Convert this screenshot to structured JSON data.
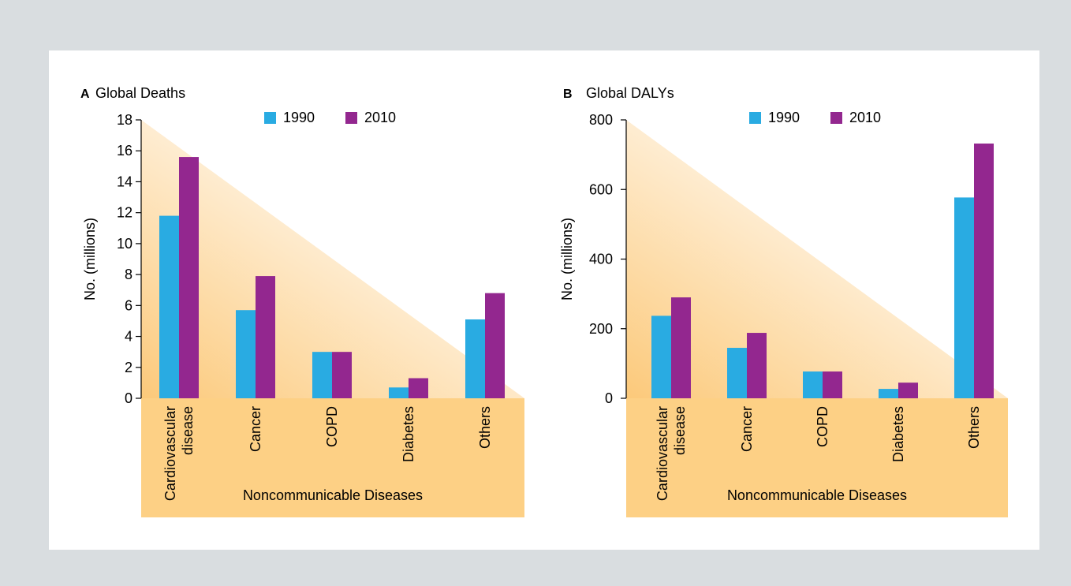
{
  "colors": {
    "series_1990": "#29abe2",
    "series_2010": "#93278f",
    "category_band": "#fdd085",
    "gradient_start": "#fcc97a",
    "page_background": "#d9dde0",
    "panel_background": "#ffffff"
  },
  "legend": {
    "label_1990": "1990",
    "label_2010": "2010"
  },
  "chart_data": [
    {
      "type": "bar",
      "panel_label": "A",
      "title": "Global Deaths",
      "ylabel": "No. (millions)",
      "xlabel": "Noncommunicable Diseases",
      "ylim": [
        0,
        18
      ],
      "yticks": [
        0,
        2,
        4,
        6,
        8,
        10,
        12,
        14,
        16,
        18
      ],
      "categories": [
        [
          "Cardiovascular",
          "disease"
        ],
        [
          "Cancer"
        ],
        [
          "COPD"
        ],
        [
          "Diabetes"
        ],
        [
          "Others"
        ]
      ],
      "series": [
        {
          "name": "1990",
          "values": [
            11.8,
            5.7,
            3.0,
            0.7,
            5.1
          ]
        },
        {
          "name": "2010",
          "values": [
            15.6,
            7.9,
            3.0,
            1.3,
            6.8
          ]
        }
      ],
      "legend_position": "top"
    },
    {
      "type": "bar",
      "panel_label": "B",
      "title": "Global DALYs",
      "ylabel": "No. (millions)",
      "xlabel": "Noncommunicable Diseases",
      "ylim": [
        0,
        800
      ],
      "yticks": [
        0,
        200,
        400,
        600,
        800
      ],
      "categories": [
        [
          "Cardiovascular",
          "disease"
        ],
        [
          "Cancer"
        ],
        [
          "COPD"
        ],
        [
          "Diabetes"
        ],
        [
          "Others"
        ]
      ],
      "series": [
        {
          "name": "1990",
          "values": [
            237,
            145,
            77,
            27,
            577
          ]
        },
        {
          "name": "2010",
          "values": [
            290,
            188,
            77,
            45,
            732
          ]
        }
      ],
      "legend_position": "top"
    }
  ]
}
